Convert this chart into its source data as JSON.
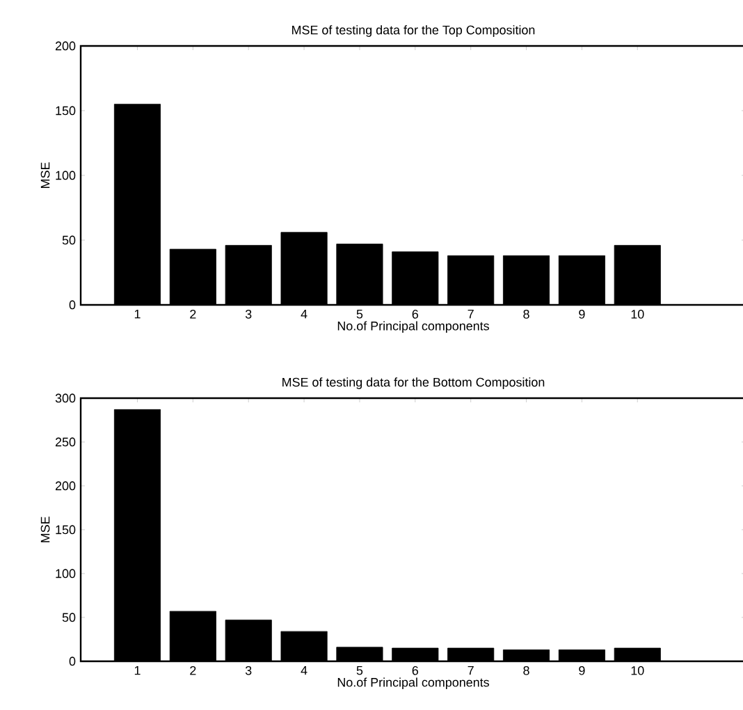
{
  "chart_data": [
    {
      "type": "bar",
      "title": "MSE of testing data for the Top Composition",
      "xlabel": "No.of Principal components",
      "ylabel": "MSE",
      "categories": [
        "1",
        "2",
        "3",
        "4",
        "5",
        "6",
        "7",
        "8",
        "9",
        "10"
      ],
      "values": [
        155,
        43,
        46,
        56,
        47,
        41,
        38,
        38,
        38,
        46
      ],
      "color": "#000000",
      "ylim": [
        0,
        200
      ],
      "yticks": [
        0,
        50,
        100,
        150,
        200
      ],
      "grid": false
    },
    {
      "type": "bar",
      "title": "MSE of testing data for the Bottom Composition",
      "xlabel": "No.of Principal components",
      "ylabel": "MSE",
      "categories": [
        "1",
        "2",
        "3",
        "4",
        "5",
        "6",
        "7",
        "8",
        "9",
        "10"
      ],
      "values": [
        287,
        57,
        47,
        34,
        16,
        15,
        15,
        13,
        13,
        15
      ],
      "color": "#000000",
      "ylim": [
        0,
        300
      ],
      "yticks": [
        0,
        50,
        100,
        150,
        200,
        250,
        300
      ],
      "grid": false
    }
  ]
}
